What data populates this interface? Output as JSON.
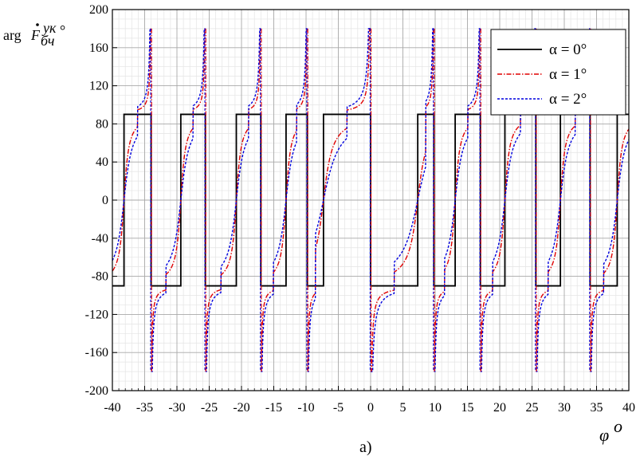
{
  "chart_data": {
    "type": "line",
    "title": "",
    "panel_label": "а)",
    "ylabel": {
      "prefix": "arg",
      "symbol": "F",
      "superscript": "ук",
      "subscript": "бч",
      "unit": "°"
    },
    "xlabel": {
      "symbol": "φ",
      "unit": "o"
    },
    "xlim": [
      -40,
      40
    ],
    "ylim": [
      -200,
      200
    ],
    "xticks": [
      -40,
      -35,
      -30,
      -25,
      -20,
      -15,
      -10,
      -5,
      0,
      5,
      10,
      15,
      20,
      25,
      30,
      35,
      40
    ],
    "yticks": [
      -200,
      -160,
      -120,
      -80,
      -40,
      0,
      40,
      80,
      120,
      160,
      200
    ],
    "xtick_labels": [
      "-40",
      "-35",
      "-30",
      "-25",
      "-20",
      "-15",
      "-10",
      "-5",
      "0",
      "5",
      "10",
      "15",
      "20",
      "25",
      "30",
      "35",
      "40"
    ],
    "ytick_labels": [
      "-200",
      "-160",
      "-120",
      "-80",
      "-40",
      "0",
      "40",
      "80",
      "120",
      "160",
      "200"
    ],
    "grid": true,
    "legend_position": "top-right",
    "switch_points": [
      -38.2,
      -34.0,
      -29.4,
      -25.6,
      -20.8,
      -17.0,
      -13.1,
      -9.8,
      -7.3,
      0.0,
      7.3,
      9.8,
      13.1,
      17.0,
      20.8,
      25.6,
      29.4,
      34.0,
      38.2
    ],
    "poles": [
      -34.0,
      -25.6,
      -17.0,
      -9.8,
      0.0,
      9.8,
      17.0,
      25.6,
      34.0
    ],
    "series": [
      {
        "name": "α = 0°",
        "color": "#000000",
        "dash": "solid",
        "description": "square wave alternating between -90 and 90"
      },
      {
        "name": "α = 1°",
        "color": "#e00000",
        "dash": "dashdot",
        "description": "smooth sigmoid transitions, up to ±180 near poles"
      },
      {
        "name": "α = 2°",
        "color": "#0000dd",
        "dash": "dashed",
        "description": "wider smooth transitions, up to ±180 near poles"
      }
    ]
  }
}
